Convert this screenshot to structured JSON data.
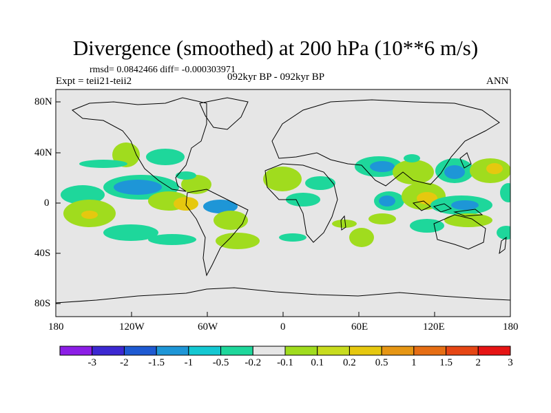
{
  "title": "Divergence (smoothed) at 200 hPa (10**6 m/s)",
  "stats": "rmsd= 0.0842466 diff= -0.000303971",
  "left_label": "Expt = teii21-teii2",
  "center_label": "092kyr BP - 092kyr BP",
  "right_label": "ANN",
  "lat_ticks": [
    "80N",
    "40N",
    "0",
    "40S",
    "80S"
  ],
  "lon_ticks": [
    "180",
    "120W",
    "60W",
    "0",
    "60E",
    "120E",
    "180"
  ],
  "colorbar": {
    "colors": [
      "#8c1ee6",
      "#3c28d2",
      "#1e5ad2",
      "#1e96d7",
      "#14c8d2",
      "#1ed79b",
      "#e6e6e6",
      "#a0dc1e",
      "#c8dc1e",
      "#e6c80f",
      "#e69614",
      "#e66e14",
      "#e64614",
      "#e61414"
    ],
    "labels": [
      "-3",
      "-2",
      "-1.5",
      "-1",
      "-0.5",
      "-0.2",
      "-0.1",
      "0.1",
      "0.2",
      "0.5",
      "1",
      "1.5",
      "2",
      "3"
    ]
  },
  "map": {
    "background": "#e6e6e6",
    "land_outline": "#000000"
  }
}
